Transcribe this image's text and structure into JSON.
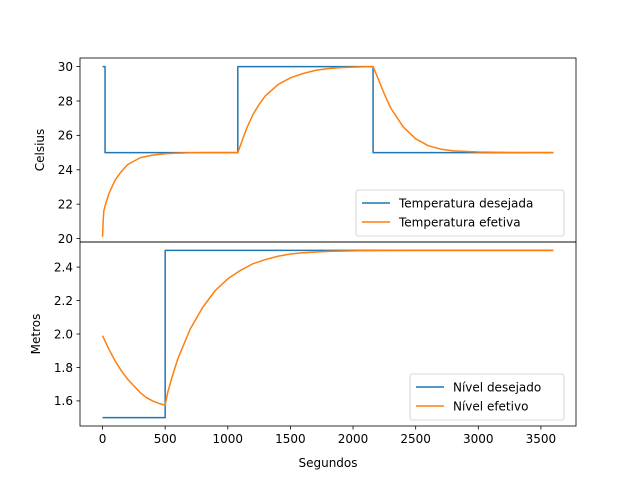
{
  "chart_data": [
    {
      "type": "line",
      "ylabel": "Celsius",
      "ylim": [
        19.8,
        30.5
      ],
      "yticks": [
        20,
        22,
        24,
        26,
        28,
        30
      ],
      "xlim": [
        -180,
        3780
      ],
      "legend_position": "lower-right",
      "series": [
        {
          "name": "Temperatura desejada",
          "color": "#1f77b4",
          "x": [
            0,
            20,
            20,
            1080,
            1080,
            2160,
            2160,
            3600
          ],
          "y": [
            30,
            30,
            25,
            25,
            30,
            30,
            25,
            25
          ]
        },
        {
          "name": "Temperatura efetiva",
          "color": "#ff7f0e",
          "x": [
            0,
            5,
            10,
            20,
            50,
            100,
            150,
            200,
            300,
            400,
            500,
            600,
            700,
            800,
            1080,
            1100,
            1150,
            1200,
            1250,
            1300,
            1400,
            1500,
            1600,
            1700,
            1800,
            1900,
            2000,
            2100,
            2160,
            2200,
            2250,
            2300,
            2400,
            2500,
            2600,
            2700,
            2800,
            3000,
            3200,
            3400,
            3600
          ],
          "y": [
            20.1,
            21.0,
            21.6,
            21.9,
            22.6,
            23.4,
            23.9,
            24.3,
            24.7,
            24.85,
            24.93,
            24.97,
            24.99,
            25.0,
            25.0,
            25.4,
            26.4,
            27.2,
            27.8,
            28.3,
            28.95,
            29.35,
            29.6,
            29.78,
            29.88,
            29.94,
            29.97,
            29.99,
            30.0,
            29.3,
            28.4,
            27.6,
            26.5,
            25.8,
            25.4,
            25.2,
            25.1,
            25.03,
            25.01,
            25.0,
            25.0
          ]
        }
      ]
    },
    {
      "type": "line",
      "ylabel": "Metros",
      "xlabel": "Segundos",
      "ylim": [
        1.45,
        2.55
      ],
      "yticks": [
        1.6,
        1.8,
        2.0,
        2.2,
        2.4
      ],
      "yticklabels": [
        "1.6",
        "1.8",
        "2.0",
        "2.2",
        "2.4"
      ],
      "xlim": [
        -180,
        3780
      ],
      "xticks": [
        0,
        500,
        1000,
        1500,
        2000,
        2500,
        3000,
        3500
      ],
      "legend_position": "lower-right",
      "series": [
        {
          "name": "Nível desejado",
          "color": "#1f77b4",
          "x": [
            0,
            500,
            500,
            3600
          ],
          "y": [
            1.5,
            1.5,
            2.5,
            2.5
          ]
        },
        {
          "name": "Nível efetivo",
          "color": "#ff7f0e",
          "x": [
            0,
            50,
            100,
            150,
            200,
            250,
            300,
            350,
            400,
            450,
            500,
            520,
            550,
            600,
            700,
            800,
            900,
            1000,
            1100,
            1200,
            1300,
            1400,
            1500,
            1600,
            1800,
            2000,
            2200,
            2500,
            3000,
            3600
          ],
          "y": [
            1.99,
            1.91,
            1.84,
            1.78,
            1.73,
            1.69,
            1.65,
            1.62,
            1.6,
            1.585,
            1.575,
            1.65,
            1.73,
            1.85,
            2.03,
            2.16,
            2.26,
            2.33,
            2.38,
            2.42,
            2.445,
            2.465,
            2.478,
            2.486,
            2.494,
            2.497,
            2.499,
            2.5,
            2.5,
            2.5
          ]
        }
      ]
    }
  ]
}
